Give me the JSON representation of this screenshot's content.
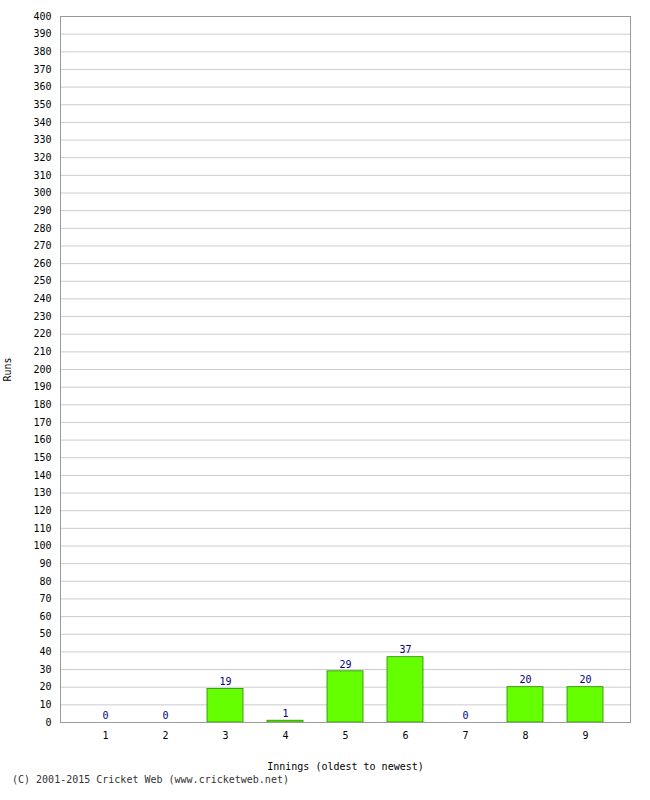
{
  "chart_data": {
    "type": "bar",
    "categories": [
      "1",
      "2",
      "3",
      "4",
      "5",
      "6",
      "7",
      "8",
      "9"
    ],
    "values": [
      0,
      0,
      19,
      1,
      29,
      37,
      0,
      20,
      20
    ],
    "color": "#66ff00",
    "xlabel": "Innings (oldest to newest)",
    "ylabel": "Runs",
    "footer": "(C) 2001-2015 Cricket Web (www.cricketweb.net)",
    "ylim": [
      0,
      400
    ],
    "yticks": [
      0,
      10,
      20,
      30,
      40,
      50,
      60,
      70,
      80,
      90,
      100,
      110,
      120,
      130,
      140,
      150,
      160,
      170,
      180,
      190,
      200,
      210,
      220,
      230,
      240,
      250,
      260,
      270,
      280,
      290,
      300,
      310,
      320,
      330,
      340,
      350,
      360,
      370,
      380,
      390,
      400
    ],
    "grid": true,
    "data_labels": true
  }
}
